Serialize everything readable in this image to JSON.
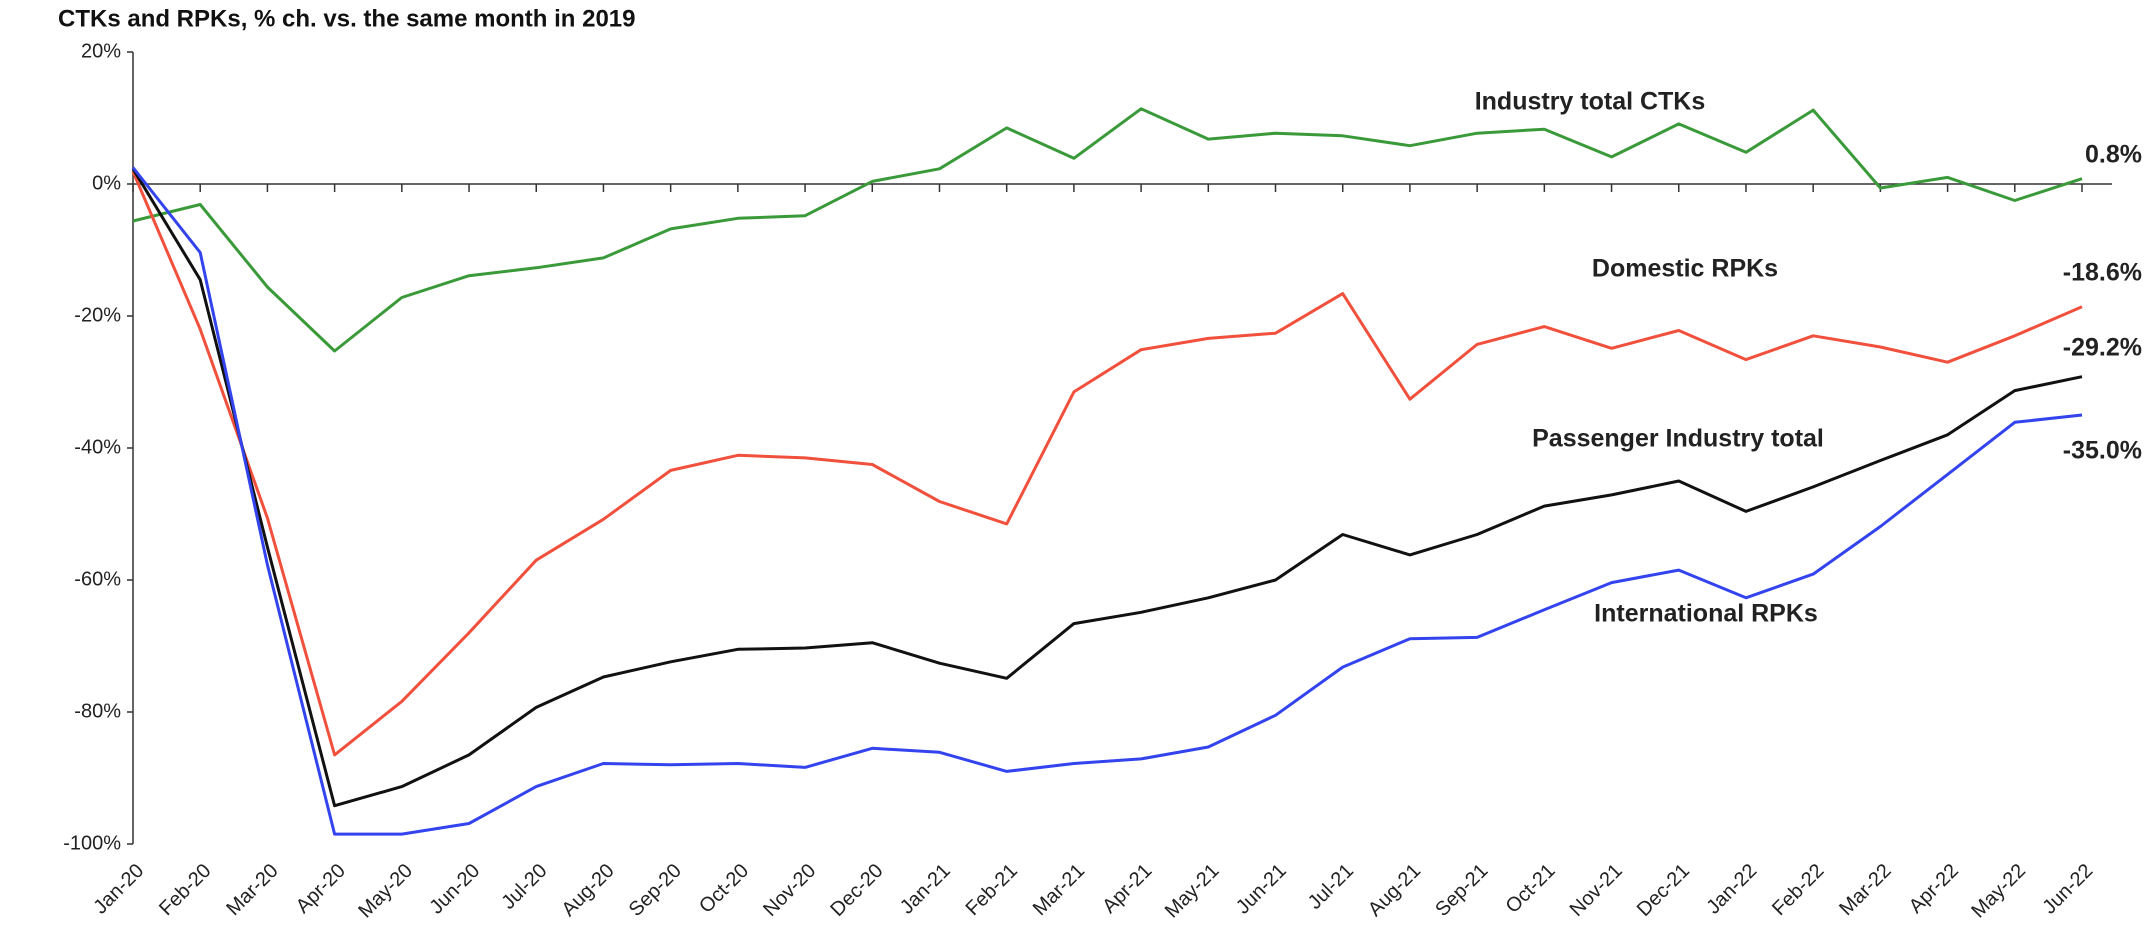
{
  "chart_data": {
    "type": "line",
    "title": "CTKs and RPKs, % ch. vs. the same month in 2019",
    "categories": [
      "Jan-20",
      "Feb-20",
      "Mar-20",
      "Apr-20",
      "May-20",
      "Jun-20",
      "Jul-20",
      "Aug-20",
      "Sep-20",
      "Oct-20",
      "Nov-20",
      "Dec-20",
      "Jan-21",
      "Feb-21",
      "Mar-21",
      "Apr-21",
      "May-21",
      "Jun-21",
      "Jul-21",
      "Aug-21",
      "Sep-21",
      "Oct-21",
      "Nov-21",
      "Dec-21",
      "Jan-22",
      "Feb-22",
      "Mar-22",
      "Apr-22",
      "May-22",
      "Jun-22"
    ],
    "ylim": [
      -100,
      20
    ],
    "yticks": [
      {
        "value": 20,
        "label": "20%"
      },
      {
        "value": 0,
        "label": "0%"
      },
      {
        "value": -20,
        "label": "-20%"
      },
      {
        "value": -40,
        "label": "-40%"
      },
      {
        "value": -60,
        "label": "-60%"
      },
      {
        "value": -80,
        "label": "-80%"
      },
      {
        "value": -100,
        "label": "-100%"
      }
    ],
    "grid": false,
    "series": [
      {
        "name": "Industry total CTKs",
        "color": "#3a9a3a",
        "values": [
          -5.6,
          -3.1,
          -15.6,
          -25.3,
          -17.2,
          -13.9,
          -12.7,
          -11.2,
          -6.8,
          -5.2,
          -4.8,
          0.4,
          2.3,
          8.5,
          3.9,
          11.4,
          6.8,
          7.7,
          7.3,
          5.8,
          7.7,
          8.3,
          4.1,
          9.1,
          4.8,
          11.2,
          -0.6,
          1.0,
          -2.5,
          0.8
        ],
        "value_labels": [
          null,
          null,
          null,
          null,
          null,
          null,
          null,
          null,
          null,
          null,
          null,
          null,
          null,
          null,
          null,
          null,
          null,
          null,
          null,
          null,
          null,
          null,
          null,
          null,
          null,
          null,
          null,
          null,
          null,
          "0.8%"
        ]
      },
      {
        "name": "Domestic RPKs",
        "color": "#f0503c",
        "values": [
          1.9,
          -22,
          -50.6,
          -86.5,
          -78.4,
          -68,
          -57,
          -50.8,
          -43.4,
          -41.1,
          -41.5,
          -42.5,
          -48.1,
          -51.5,
          -31.5,
          -25.1,
          -23.4,
          -22.6,
          -16.6,
          -32.6,
          -24.3,
          -21.6,
          -24.9,
          -22.2,
          -26.6,
          -23.0,
          -24.7,
          -27.0,
          -23.0,
          -18.6
        ],
        "value_labels": [
          null,
          null,
          null,
          null,
          null,
          null,
          null,
          null,
          null,
          null,
          null,
          null,
          null,
          null,
          null,
          null,
          null,
          null,
          null,
          null,
          null,
          null,
          null,
          null,
          null,
          null,
          null,
          null,
          null,
          "-18.6%"
        ]
      },
      {
        "name": "Passenger Industry total",
        "color": "#111111",
        "values": [
          2.3,
          -14.5,
          -55,
          -94.2,
          -91.3,
          -86.5,
          -79.3,
          -74.7,
          -72.4,
          -70.5,
          -70.3,
          -69.5,
          -72.6,
          -74.9,
          -66.6,
          -64.9,
          -62.7,
          -60,
          -53.1,
          -56.2,
          -53.1,
          -48.8,
          -47.1,
          -45.0,
          -49.6,
          -45.9,
          -41.9,
          -38,
          -31.3,
          -29.2
        ],
        "value_labels": [
          null,
          null,
          null,
          null,
          null,
          null,
          null,
          null,
          null,
          null,
          null,
          null,
          null,
          null,
          null,
          null,
          null,
          null,
          null,
          null,
          null,
          null,
          null,
          null,
          null,
          null,
          null,
          null,
          null,
          "-29.2%"
        ]
      },
      {
        "name": "International RPKs",
        "color": "#3344ee",
        "values": [
          2.5,
          -10.4,
          -57.7,
          -98.5,
          -98.5,
          -96.9,
          -91.3,
          -87.8,
          -88,
          -87.8,
          -88.4,
          -85.5,
          -86.1,
          -89,
          -87.8,
          -87.1,
          -85.3,
          -80.5,
          -73.2,
          -68.9,
          -68.7,
          -64.5,
          -60.4,
          -58.5,
          -62.7,
          -59.1,
          -51.9,
          -44,
          -36.1,
          -35.0
        ],
        "value_labels": [
          null,
          null,
          null,
          null,
          null,
          null,
          null,
          null,
          null,
          null,
          null,
          null,
          null,
          null,
          null,
          null,
          null,
          null,
          null,
          null,
          null,
          null,
          null,
          null,
          null,
          null,
          null,
          null,
          null,
          "-35.0%"
        ]
      }
    ]
  }
}
